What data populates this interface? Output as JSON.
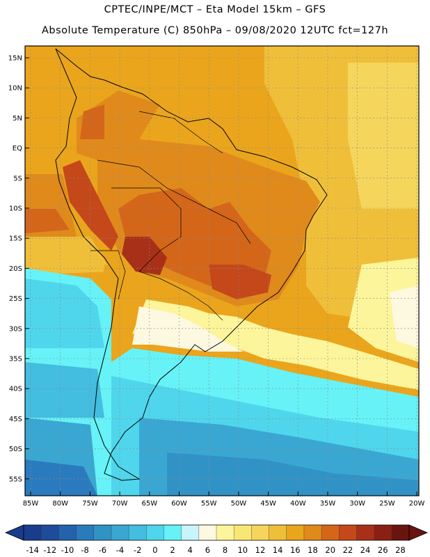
{
  "header": {
    "title_line1": "CPTEC/INPE/MCT –  Eta Model 15km – GFS",
    "title_line2": "Absolute Temperature (C) 850hPa – 09/08/2020 12UTC fct=127h"
  },
  "map": {
    "lat_labels": [
      "15N",
      "10N",
      "5N",
      "EQ",
      "5S",
      "10S",
      "15S",
      "20S",
      "25S",
      "30S",
      "35S",
      "40S",
      "45S",
      "50S",
      "55S"
    ],
    "lon_labels": [
      "85W",
      "80W",
      "75W",
      "70W",
      "65W",
      "60W",
      "55W",
      "50W",
      "45W",
      "40W",
      "35W",
      "30W",
      "25W",
      "20W"
    ],
    "colors": {
      "land_border": "#000000",
      "grid": "#8a8a8a"
    }
  },
  "colorbar": {
    "labels": [
      "-14",
      "-12",
      "-10",
      "-8",
      "-6",
      "-4",
      "-2",
      "0",
      "2",
      "4",
      "6",
      "8",
      "10",
      "12",
      "14",
      "16",
      "18",
      "20",
      "22",
      "24",
      "26",
      "28"
    ],
    "colors": [
      "#1a3c8c",
      "#1f4b9c",
      "#2462ad",
      "#2a7bbd",
      "#3192c6",
      "#3aa7d2",
      "#43bde0",
      "#4fd6ec",
      "#66f2f7",
      "#c8f4fb",
      "#fdf8e0",
      "#fcf59b",
      "#f9e775",
      "#f6d55c",
      "#f0bf3a",
      "#eaa51c",
      "#e08a1c",
      "#d4661a",
      "#c4481a",
      "#a83018",
      "#8a2014",
      "#6a1410"
    ]
  }
}
